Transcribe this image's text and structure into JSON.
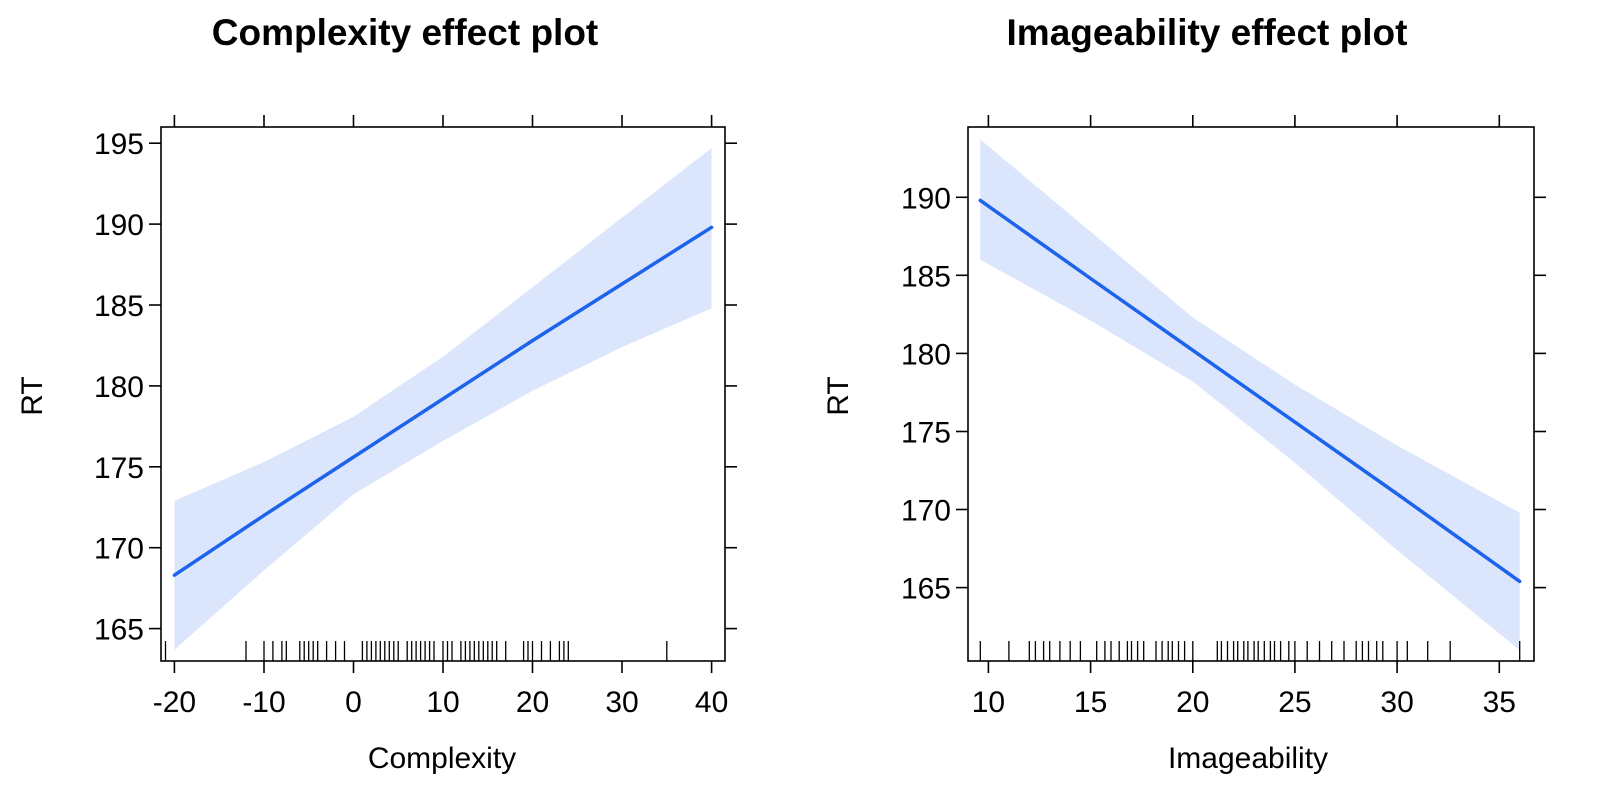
{
  "chart_data": [
    {
      "type": "line",
      "title": "Complexity effect plot",
      "xlabel": "Complexity",
      "ylabel": "RT",
      "xlim": [
        -21.5,
        41.5
      ],
      "ylim": [
        163,
        196
      ],
      "x_ticks": [
        -20,
        -10,
        0,
        10,
        20,
        30,
        40
      ],
      "x_tick_labels": [
        "-20",
        "-10",
        "0",
        "10",
        "20",
        "30",
        "40"
      ],
      "y_ticks": [
        165,
        170,
        175,
        180,
        185,
        190,
        195
      ],
      "y_tick_labels": [
        "165",
        "170",
        "175",
        "180",
        "185",
        "190",
        "195"
      ],
      "grid": false,
      "series": [
        {
          "x": [
            -20,
            -10,
            0,
            10,
            20,
            30,
            40
          ],
          "y": [
            168.3,
            172.0,
            175.6,
            179.2,
            182.8,
            186.3,
            189.8
          ],
          "lower": [
            163.7,
            168.6,
            173.3,
            176.6,
            179.7,
            182.4,
            184.8
          ],
          "upper": [
            172.9,
            175.3,
            178.1,
            181.8,
            186.1,
            190.4,
            194.7
          ]
        }
      ],
      "rug": [
        -21,
        -12,
        -10,
        -9,
        -8,
        -7.5,
        -6,
        -5.5,
        -5,
        -4.5,
        -4,
        -3,
        -2,
        -1,
        1,
        1.5,
        2,
        2.5,
        3,
        3.5,
        4,
        4.5,
        5,
        6,
        6.5,
        7,
        7.5,
        8,
        8.5,
        9,
        10,
        10.5,
        11,
        12,
        12.5,
        13,
        13.5,
        14,
        14.5,
        15,
        15.5,
        16,
        17,
        19,
        19.5,
        20,
        21,
        22,
        23,
        23.5,
        24,
        35
      ],
      "colors": {
        "band": "#dbe6fd",
        "line": "#1d63ec"
      }
    },
    {
      "type": "line",
      "title": "Imageability effect plot",
      "xlabel": "Imageability",
      "ylabel": "RT",
      "xlim": [
        9,
        36.7
      ],
      "ylim": [
        160.3,
        194.5
      ],
      "x_ticks": [
        10,
        15,
        20,
        25,
        30,
        35
      ],
      "x_tick_labels": [
        "10",
        "15",
        "20",
        "25",
        "30",
        "35"
      ],
      "y_ticks": [
        165,
        170,
        175,
        180,
        185,
        190
      ],
      "y_tick_labels": [
        "165",
        "170",
        "175",
        "180",
        "185",
        "190"
      ],
      "grid": false,
      "series": [
        {
          "x": [
            9.6,
            15,
            20,
            25,
            30,
            36
          ],
          "y": [
            189.8,
            184.8,
            180.2,
            175.6,
            171.0,
            165.4
          ],
          "lower": [
            186.0,
            182.1,
            178.2,
            173.0,
            167.4,
            161.0
          ],
          "upper": [
            193.7,
            187.8,
            182.3,
            178.0,
            174.1,
            169.8
          ]
        }
      ],
      "rug": [
        9.6,
        11,
        12,
        12.3,
        12.7,
        13,
        13.5,
        14,
        14.5,
        15.3,
        15.7,
        16,
        16.4,
        16.8,
        17,
        17.3,
        17.6,
        18.2,
        18.5,
        18.8,
        19,
        19.3,
        19.6,
        20,
        21.2,
        21.4,
        21.7,
        22,
        22.2,
        22.5,
        22.7,
        23,
        23.2,
        23.5,
        23.8,
        24,
        24.3,
        24.7,
        25,
        25.6,
        26.2,
        26.8,
        27.4,
        28,
        28.3,
        28.6,
        29,
        29.3,
        30,
        30.5,
        31.5,
        32.6,
        36
      ],
      "colors": {
        "band": "#dbe6fd",
        "line": "#1d63ec"
      }
    }
  ]
}
